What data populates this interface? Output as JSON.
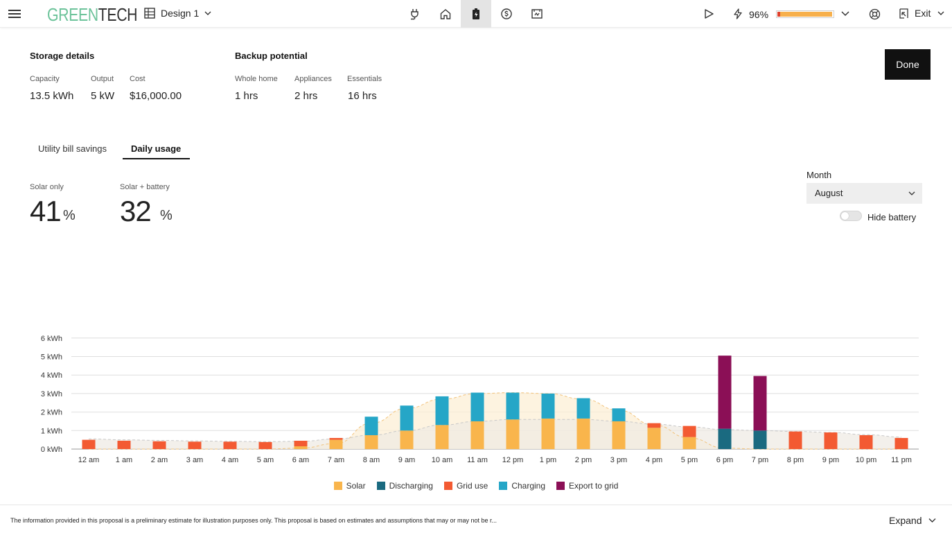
{
  "header": {
    "logo_part1": "GREEN",
    "logo_part2": "TECH",
    "design_label": "Design 1",
    "battery_pct": "96%",
    "battery_fill_fraction": 0.96,
    "exit_label": "Exit",
    "center_icons": [
      "plug-icon",
      "home-icon",
      "battery-icon",
      "dollar-icon",
      "contract-icon"
    ],
    "active_icon": "battery-icon"
  },
  "storage": {
    "title": "Storage details",
    "capacity_label": "Capacity",
    "capacity_value": "13.5 kWh",
    "output_label": "Output",
    "output_value": "5 kW",
    "cost_label": "Cost",
    "cost_value": "$16,000.00"
  },
  "backup": {
    "title": "Backup potential",
    "whole_home_label": "Whole home",
    "whole_home_value": "1 hrs",
    "appliances_label": "Appliances",
    "appliances_value": "2 hrs",
    "essentials_label": "Essentials",
    "essentials_value": "16 hrs"
  },
  "done_label": "Done",
  "tabs": [
    {
      "label": "Utility bill savings",
      "active": false
    },
    {
      "label": "Daily usage",
      "active": true
    }
  ],
  "stats": {
    "solar_only_label": "Solar only",
    "solar_only_value": "41",
    "solar_battery_label": "Solar + battery",
    "solar_battery_value": "32",
    "unit": "%"
  },
  "controls": {
    "month_label": "Month",
    "month_value": "August",
    "hide_battery_label": "Hide battery",
    "hide_battery_on": false
  },
  "colors": {
    "solar": "#f9b54c",
    "discharging": "#1a6a80",
    "grid_use": "#f35a32",
    "charging": "#25a6c7",
    "export": "#8b0f56"
  },
  "chart_data": {
    "type": "bar",
    "stacked": true,
    "categories": [
      "12 am",
      "1 am",
      "2 am",
      "3 am",
      "4 am",
      "5 am",
      "6 am",
      "7 am",
      "8 am",
      "9 am",
      "10 am",
      "11 am",
      "12 pm",
      "1 pm",
      "2 pm",
      "3 pm",
      "4 pm",
      "5 pm",
      "6 pm",
      "7 pm",
      "8 pm",
      "9 pm",
      "10 pm",
      "11 pm"
    ],
    "y_ticks": [
      "0 kWh",
      "1 kWh",
      "2 kWh",
      "3 kWh",
      "4 kWh",
      "5 kWh",
      "6 kWh"
    ],
    "ylim": [
      0,
      6
    ],
    "series": [
      {
        "name": "Solar",
        "values": [
          0,
          0,
          0,
          0,
          0,
          0,
          0.15,
          0.5,
          0.75,
          1.0,
          1.3,
          1.5,
          1.6,
          1.65,
          1.65,
          1.5,
          1.15,
          0.65,
          0,
          0,
          0,
          0,
          0,
          0
        ]
      },
      {
        "name": "Discharging",
        "values": [
          0,
          0,
          0,
          0,
          0,
          0,
          0,
          0,
          0,
          0,
          0,
          0,
          0,
          0,
          0,
          0,
          0,
          0,
          1.1,
          1.0,
          0,
          0,
          0,
          0
        ]
      },
      {
        "name": "Grid use",
        "values": [
          0.5,
          0.45,
          0.42,
          0.4,
          0.4,
          0.38,
          0.3,
          0.1,
          0,
          0,
          0,
          0,
          0,
          0,
          0,
          0,
          0.25,
          0.6,
          0,
          0,
          0.95,
          0.9,
          0.75,
          0.6
        ]
      },
      {
        "name": "Charging",
        "values": [
          0,
          0,
          0,
          0,
          0,
          0,
          0,
          0,
          1.0,
          1.35,
          1.55,
          1.55,
          1.45,
          1.35,
          1.1,
          0.7,
          0,
          0,
          0,
          0,
          0,
          0,
          0,
          0
        ]
      },
      {
        "name": "Export to grid",
        "values": [
          0,
          0,
          0,
          0,
          0,
          0,
          0,
          0,
          0,
          0,
          0,
          0,
          0,
          0,
          0,
          0,
          0,
          0,
          3.95,
          2.95,
          0,
          0,
          0,
          0
        ]
      }
    ],
    "solar_curve": [
      0,
      0,
      0,
      0,
      0,
      0,
      0.05,
      0.3,
      1.4,
      2.2,
      2.7,
      3.0,
      3.05,
      3.0,
      2.7,
      2.1,
      1.3,
      0.6,
      0.05,
      0,
      0,
      0,
      0,
      0
    ],
    "usage_curve": [
      0.55,
      0.5,
      0.47,
      0.44,
      0.42,
      0.4,
      0.42,
      0.55,
      0.75,
      1.0,
      1.3,
      1.5,
      1.6,
      1.6,
      1.6,
      1.5,
      1.35,
      1.2,
      1.05,
      1.0,
      0.95,
      0.9,
      0.78,
      0.65
    ],
    "legend": [
      "Solar",
      "Discharging",
      "Grid use",
      "Charging",
      "Export to grid"
    ],
    "legend_position": "bottom",
    "grid": true
  },
  "footer": {
    "disclaimer": "The information provided in this proposal is a preliminary estimate for illustration purposes only. This proposal is based on estimates and assumptions that may or may not be r...",
    "expand_label": "Expand"
  }
}
